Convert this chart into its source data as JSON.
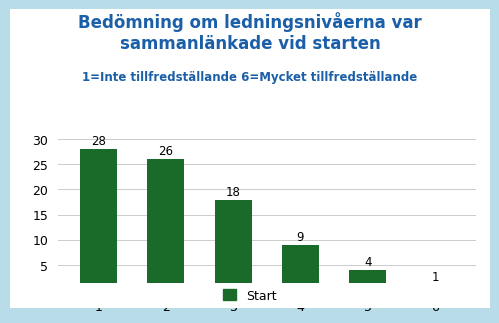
{
  "title_line1": "Bedömning om ledningsnivåerna var",
  "title_line2": "sammanlänkade vid starten",
  "subtitle": "1=Inte tillfredställande 6=Mycket tillfredställande",
  "categories": [
    "1",
    "2",
    "3",
    "4",
    "5",
    "6"
  ],
  "values": [
    28,
    26,
    18,
    9,
    4,
    1
  ],
  "bar_color": "#1a6b2a",
  "legend_label": "Start",
  "ylim": [
    0,
    30
  ],
  "yticks": [
    0,
    5,
    10,
    15,
    20,
    25,
    30
  ],
  "chart_bg": "#ffffff",
  "fig_bg": "#b8dde8",
  "title_color": "#1a5fa8",
  "subtitle_color": "#1a5fa8",
  "label_color": "#000000",
  "grid_color": "#cccccc",
  "title_fontsize": 12,
  "subtitle_fontsize": 8.5,
  "bar_label_fontsize": 8.5,
  "tick_fontsize": 9,
  "legend_fontsize": 9
}
